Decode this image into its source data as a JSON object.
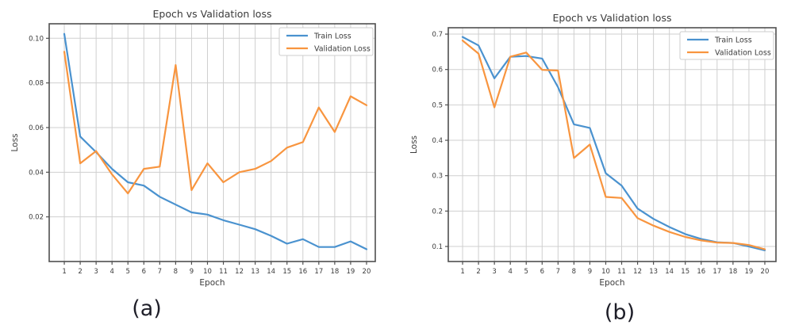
{
  "page": {
    "background": "#ffffff"
  },
  "captions": {
    "a": "(a)",
    "b": "(b)"
  },
  "colors": {
    "train": "#4a92cf",
    "validation": "#f8953f",
    "grid": "#cfcfcf",
    "spine": "#4f4f4f",
    "text": "#3b3b3b",
    "legend_border": "#cccccc",
    "background": "#ffffff"
  },
  "chart_data": [
    {
      "id": "chart-a",
      "caption": "(a)",
      "type": "line",
      "title": "Epoch vs Validation loss",
      "xlabel": "Epoch",
      "ylabel": "Loss",
      "grid": true,
      "legend_position": "upper right",
      "legend": [
        "Train Loss",
        "Validation Loss"
      ],
      "x": [
        1,
        2,
        3,
        4,
        5,
        6,
        7,
        8,
        9,
        10,
        11,
        12,
        13,
        14,
        15,
        16,
        17,
        18,
        19,
        20
      ],
      "xlim": [
        0.05,
        20.55
      ],
      "ylim": [
        0.0,
        0.1065
      ],
      "yticks": [
        0.02,
        0.04,
        0.06,
        0.08,
        0.1
      ],
      "ytick_labels": [
        "0.02",
        "0.04",
        "0.06",
        "0.08",
        "0.10"
      ],
      "series": [
        {
          "name": "Train Loss",
          "color": "train",
          "values": [
            0.102,
            0.056,
            0.049,
            0.0415,
            0.0355,
            0.034,
            0.029,
            0.0255,
            0.022,
            0.021,
            0.0185,
            0.0165,
            0.0145,
            0.0115,
            0.008,
            0.01,
            0.0065,
            0.0065,
            0.009,
            0.0055
          ]
        },
        {
          "name": "Validation Loss",
          "color": "validation",
          "values": [
            0.094,
            0.044,
            0.0495,
            0.039,
            0.0305,
            0.0415,
            0.0425,
            0.088,
            0.032,
            0.044,
            0.0355,
            0.04,
            0.0415,
            0.045,
            0.051,
            0.0535,
            0.069,
            0.058,
            0.074,
            0.07
          ]
        }
      ]
    },
    {
      "id": "chart-b",
      "caption": "(b)",
      "type": "line",
      "title": "Epoch vs Validation loss",
      "xlabel": "Epoch",
      "ylabel": "Loss",
      "grid": true,
      "legend_position": "upper right",
      "legend": [
        "Train Loss",
        "Validation Loss"
      ],
      "x": [
        1,
        2,
        3,
        4,
        5,
        6,
        7,
        8,
        9,
        10,
        11,
        12,
        13,
        14,
        15,
        16,
        17,
        18,
        19,
        20
      ],
      "xlim": [
        0.1,
        20.7
      ],
      "ylim": [
        0.0575,
        0.718
      ],
      "yticks": [
        0.1,
        0.2,
        0.3,
        0.4,
        0.5,
        0.6,
        0.7
      ],
      "ytick_labels": [
        "0.1",
        "0.2",
        "0.3",
        "0.4",
        "0.5",
        "0.6",
        "0.7"
      ],
      "series": [
        {
          "name": "Train Loss",
          "color": "train",
          "values": [
            0.692,
            0.668,
            0.575,
            0.636,
            0.638,
            0.631,
            0.55,
            0.445,
            0.435,
            0.307,
            0.272,
            0.207,
            0.178,
            0.155,
            0.135,
            0.121,
            0.112,
            0.11,
            0.1,
            0.089
          ]
        },
        {
          "name": "Validation Loss",
          "color": "validation",
          "values": [
            0.682,
            0.645,
            0.493,
            0.636,
            0.648,
            0.599,
            0.597,
            0.35,
            0.388,
            0.24,
            0.237,
            0.18,
            0.159,
            0.141,
            0.127,
            0.117,
            0.111,
            0.11,
            0.104,
            0.092
          ]
        }
      ]
    }
  ]
}
